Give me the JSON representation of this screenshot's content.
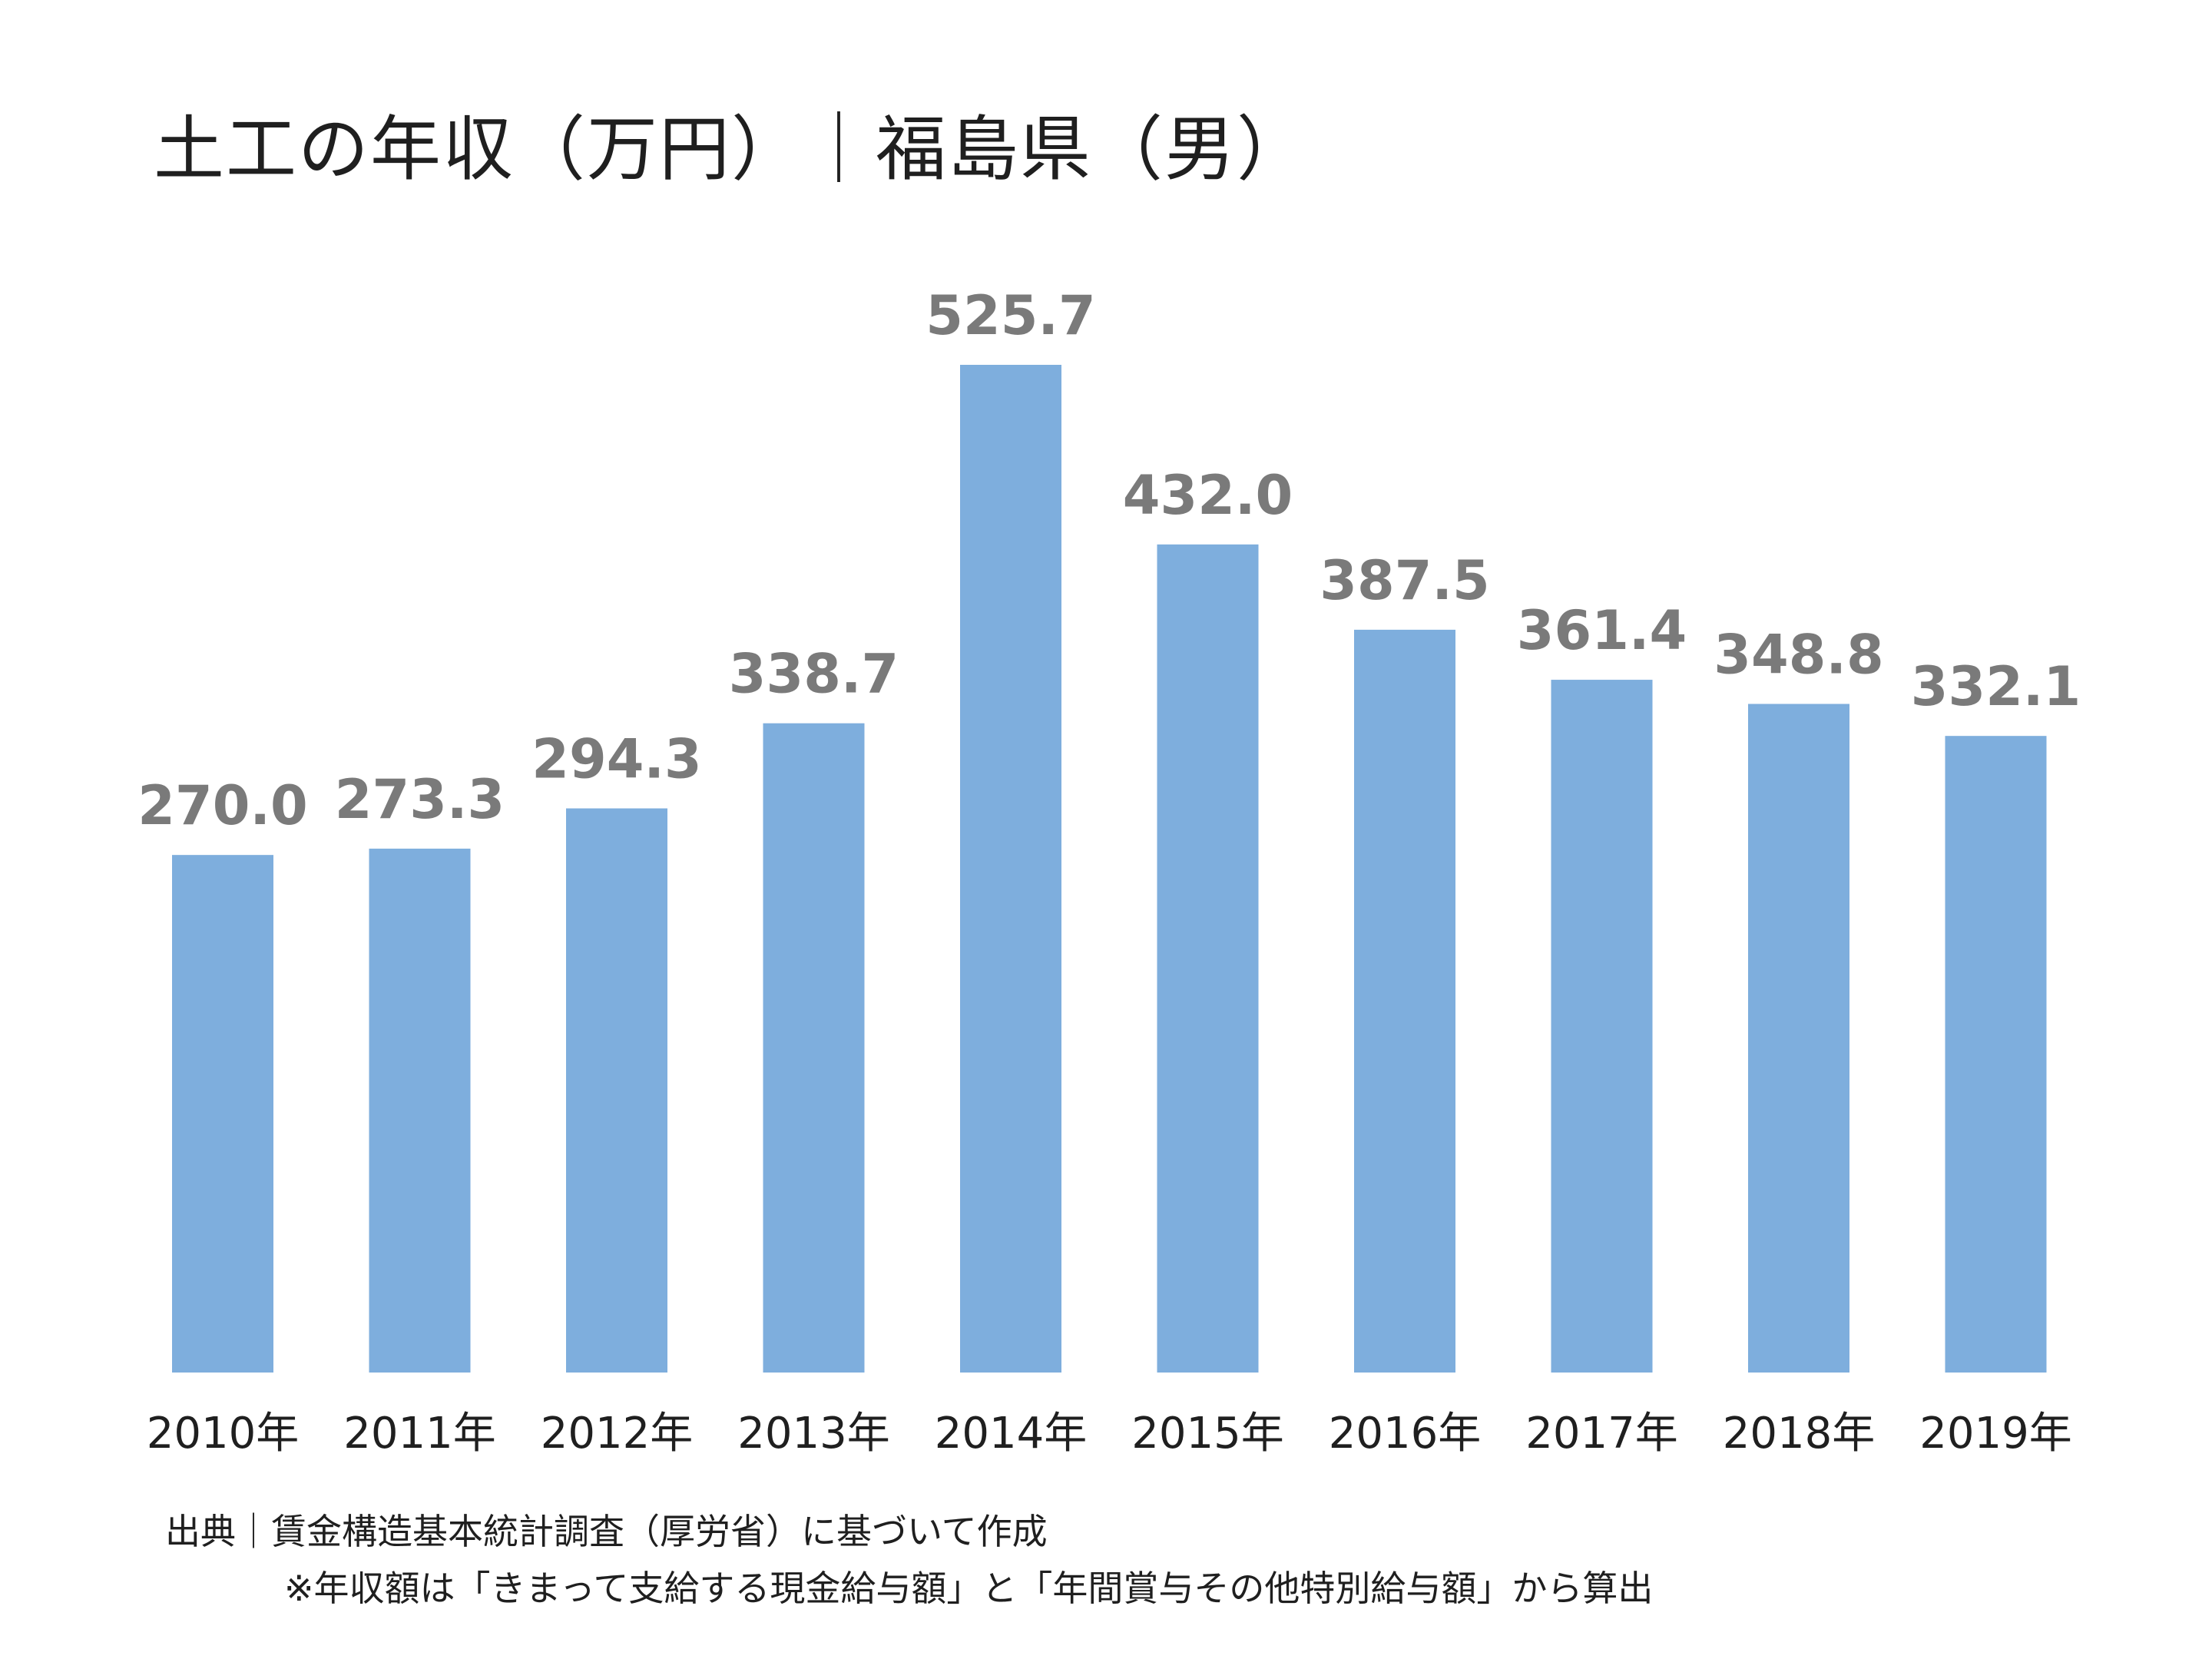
{
  "chart_data": {
    "type": "bar",
    "title": "土工の年収（万円）｜福島県（男）",
    "categories": [
      "2010年",
      "2011年",
      "2012年",
      "2013年",
      "2014年",
      "2015年",
      "2016年",
      "2017年",
      "2018年",
      "2019年"
    ],
    "values": [
      270.0,
      273.3,
      294.3,
      338.7,
      525.7,
      432.0,
      387.5,
      361.4,
      348.8,
      332.1
    ],
    "value_labels": [
      "270.0",
      "273.3",
      "294.3",
      "338.7",
      "525.7",
      "432.0",
      "387.5",
      "361.4",
      "348.8",
      "332.1"
    ],
    "xlabel": "",
    "ylabel": "",
    "ylim": [
      0,
      525.7
    ],
    "grid": false,
    "bar_color": "#7eaedd",
    "label_color": "#7a7a7a"
  },
  "footer": {
    "source": "出典｜賃金構造基本統計調査（厚労省）に基づいて作成",
    "note": "※年収額は「きまって支給する現金給与額」と「年間賞与その他特別給与額」から算出"
  }
}
